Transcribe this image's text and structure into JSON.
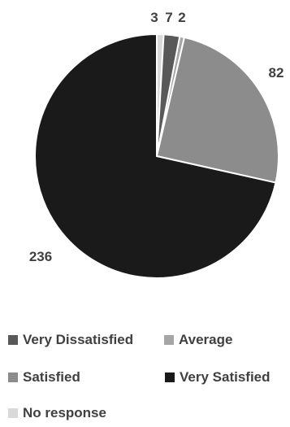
{
  "chart_data": {
    "type": "pie",
    "categories": [
      "Very Dissatisfied",
      "Average",
      "Satisfied",
      "Very Satisfied",
      "No response"
    ],
    "values": [
      7,
      2,
      82,
      236,
      3
    ],
    "colors": [
      "#595959",
      "#a6a6a6",
      "#8c8c8c",
      "#1a1a1a",
      "#d9d9d9"
    ],
    "data_labels": [
      "7",
      "2",
      "82",
      "236",
      "3"
    ],
    "title": "",
    "legend_placement": "bottom"
  }
}
